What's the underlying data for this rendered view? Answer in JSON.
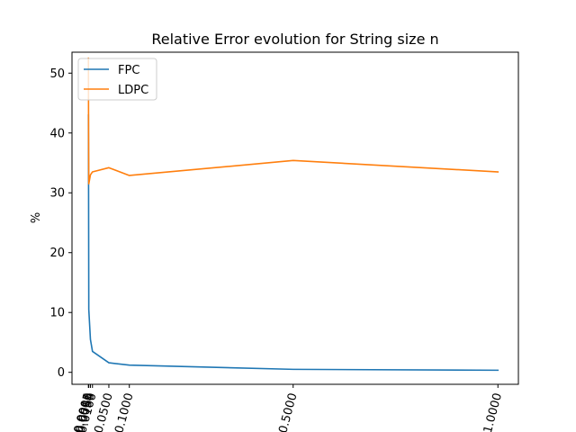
{
  "chart_data": {
    "type": "line",
    "title": "Relative Error evolution for String size n",
    "xlabel": "",
    "ylabel": "%",
    "xlim": [
      -0.04,
      1.05
    ],
    "ylim": [
      -2.0,
      53.5
    ],
    "grid": false,
    "legend_position": "top-left",
    "x": [
      0.0001,
      0.0005,
      0.001,
      0.005,
      0.01,
      0.05,
      0.1,
      0.5,
      1.0
    ],
    "x_tick_values": [
      0.0001,
      0.0005,
      0.001,
      0.005,
      0.01,
      0.05,
      0.1,
      0.5,
      1.0
    ],
    "x_tick_labels": [
      "0.0001",
      "0.0005",
      "0.0010",
      "0.0050",
      "0.0100",
      "0.0500",
      "0.1000",
      "0.5000",
      "1.0000"
    ],
    "y_tick_values": [
      0,
      10,
      20,
      30,
      40,
      50
    ],
    "y_tick_labels": [
      "0",
      "10",
      "20",
      "30",
      "40",
      "50"
    ],
    "series": [
      {
        "name": "FPC",
        "color": "#1f77b4",
        "values": [
          43.0,
          30.0,
          10.5,
          5.5,
          3.5,
          1.6,
          1.2,
          0.5,
          0.35
        ]
      },
      {
        "name": "LDPC",
        "color": "#ff7f0e",
        "values": [
          52.5,
          40.0,
          31.5,
          33.0,
          33.5,
          34.2,
          32.9,
          35.4,
          33.5
        ]
      }
    ]
  }
}
